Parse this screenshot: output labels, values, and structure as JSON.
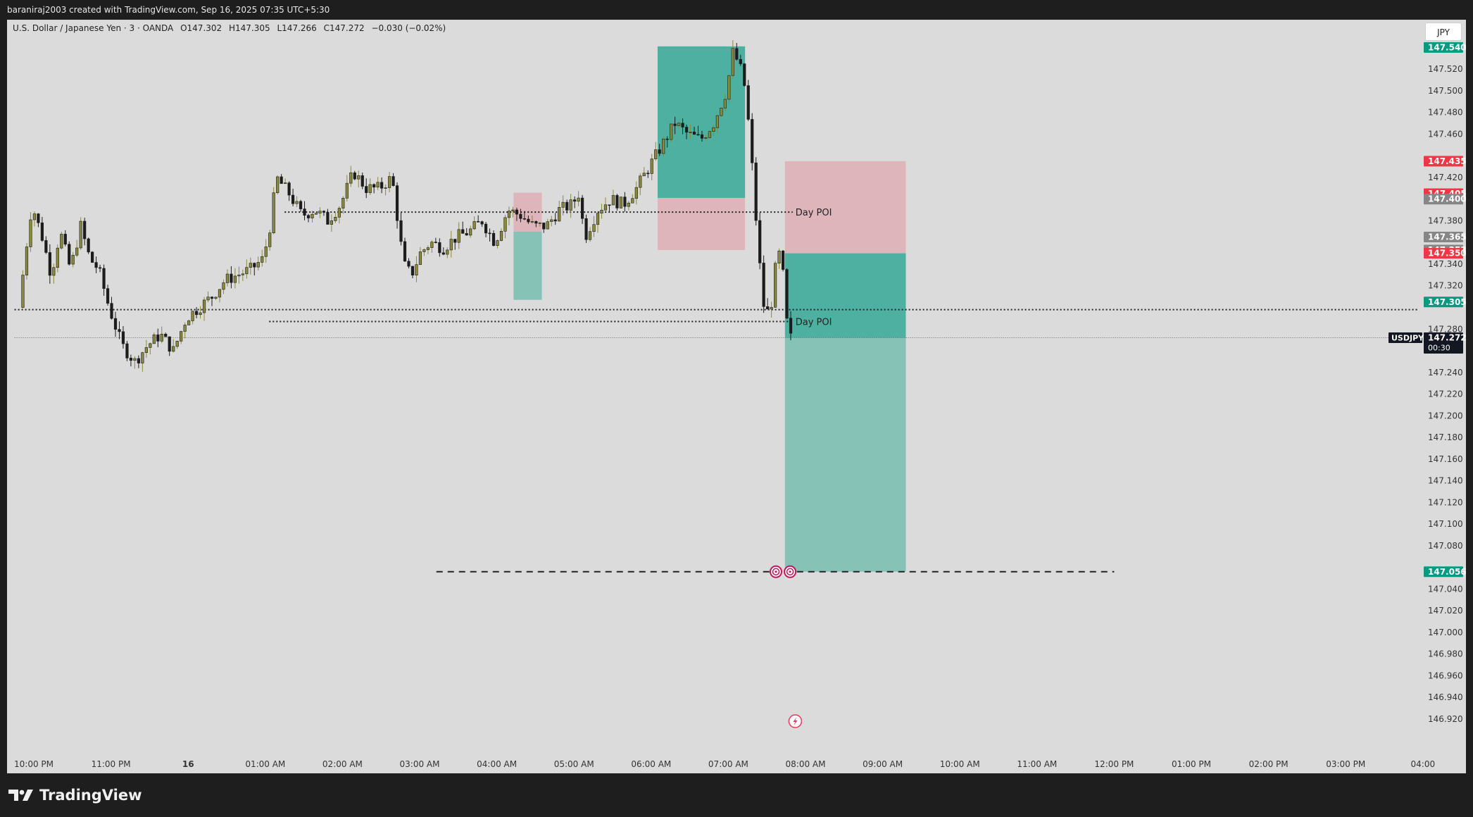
{
  "header": {
    "caption": "baraniraj2003 created with TradingView.com, Sep 16, 2025 07:35 UTC+5:30"
  },
  "legend": {
    "symbol": "U.S. Dollar / Japanese Yen · 3 · OANDA",
    "open": "O147.302",
    "high": "H147.305",
    "low": "L147.266",
    "close": "C147.272",
    "change": "−0.030 (−0.02%)"
  },
  "currency_button": "JPY",
  "footer": {
    "brand": "TradingView"
  },
  "colors": {
    "chart_bg": "#dbdbdb",
    "candle_up": "#8a8a3c",
    "candle_down": "#1c1c1c",
    "teal_zone": "#4eb0a0",
    "teal_zone_light": "#86c2b6",
    "pink_zone": "#dfb5bc",
    "label_green": "#089981",
    "label_red": "#f23645",
    "label_gray": "#868686",
    "label_black": "#131722"
  },
  "chart_data": {
    "type": "candlestick",
    "symbol": "USDJPY",
    "timeframe": "3",
    "ylim": [
      146.905,
      147.55
    ],
    "y_ticks": [
      "147.520",
      "147.500",
      "147.480",
      "147.460",
      "147.420",
      "147.380",
      "147.340",
      "147.320",
      "147.280",
      "147.240",
      "147.220",
      "147.200",
      "147.180",
      "147.160",
      "147.140",
      "147.120",
      "147.100",
      "147.080",
      "147.040",
      "147.020",
      "147.000",
      "146.980",
      "146.960",
      "146.940",
      "146.920"
    ],
    "x_ticks": [
      {
        "label": "10:00 PM",
        "t": 0
      },
      {
        "label": "11:00 PM",
        "t": 60
      },
      {
        "label": "16",
        "t": 120
      },
      {
        "label": "01:00 AM",
        "t": 180
      },
      {
        "label": "02:00 AM",
        "t": 240
      },
      {
        "label": "03:00 AM",
        "t": 300
      },
      {
        "label": "04:00 AM",
        "t": 360
      },
      {
        "label": "05:00 AM",
        "t": 420
      },
      {
        "label": "06:00 AM",
        "t": 480
      },
      {
        "label": "07:00 AM",
        "t": 540
      },
      {
        "label": "08:00 AM",
        "t": 600
      },
      {
        "label": "09:00 AM",
        "t": 660
      },
      {
        "label": "10:00 AM",
        "t": 720
      },
      {
        "label": "11:00 AM",
        "t": 780
      },
      {
        "label": "12:00 PM",
        "t": 840
      },
      {
        "label": "01:00 PM",
        "t": 900
      },
      {
        "label": "02:00 PM",
        "t": 960
      },
      {
        "label": "03:00 PM",
        "t": 1020
      },
      {
        "label": "04:00",
        "t": 1080
      }
    ],
    "price_path": [
      [
        -10,
        147.3
      ],
      [
        -5,
        147.35
      ],
      [
        0,
        147.395
      ],
      [
        8,
        147.365
      ],
      [
        15,
        147.33
      ],
      [
        22,
        147.37
      ],
      [
        30,
        147.335
      ],
      [
        38,
        147.375
      ],
      [
        45,
        147.345
      ],
      [
        52,
        147.335
      ],
      [
        60,
        147.3
      ],
      [
        70,
        147.265
      ],
      [
        80,
        147.25
      ],
      [
        90,
        147.265
      ],
      [
        100,
        147.275
      ],
      [
        110,
        147.26
      ],
      [
        120,
        147.29
      ],
      [
        130,
        147.3
      ],
      [
        140,
        147.31
      ],
      [
        150,
        147.325
      ],
      [
        160,
        147.33
      ],
      [
        170,
        147.335
      ],
      [
        180,
        147.345
      ],
      [
        186,
        147.38
      ],
      [
        190,
        147.42
      ],
      [
        200,
        147.405
      ],
      [
        210,
        147.385
      ],
      [
        220,
        147.39
      ],
      [
        230,
        147.38
      ],
      [
        240,
        147.395
      ],
      [
        250,
        147.425
      ],
      [
        260,
        147.41
      ],
      [
        270,
        147.41
      ],
      [
        280,
        147.42
      ],
      [
        289,
        147.34
      ],
      [
        295,
        147.33
      ],
      [
        302,
        147.35
      ],
      [
        310,
        147.36
      ],
      [
        320,
        147.355
      ],
      [
        330,
        147.365
      ],
      [
        340,
        147.37
      ],
      [
        350,
        147.38
      ],
      [
        360,
        147.36
      ],
      [
        365,
        147.375
      ],
      [
        370,
        147.39
      ],
      [
        380,
        147.385
      ],
      [
        390,
        147.375
      ],
      [
        400,
        147.375
      ],
      [
        410,
        147.39
      ],
      [
        420,
        147.395
      ],
      [
        425,
        147.405
      ],
      [
        430,
        147.365
      ],
      [
        440,
        147.39
      ],
      [
        450,
        147.4
      ],
      [
        460,
        147.395
      ],
      [
        470,
        147.41
      ],
      [
        480,
        147.43
      ],
      [
        490,
        147.45
      ],
      [
        500,
        147.47
      ],
      [
        510,
        147.46
      ],
      [
        520,
        147.455
      ],
      [
        530,
        147.47
      ],
      [
        540,
        147.5
      ],
      [
        545,
        147.535
      ],
      [
        550,
        147.525
      ],
      [
        555,
        147.5
      ],
      [
        560,
        147.43
      ],
      [
        565,
        147.35
      ],
      [
        570,
        147.29
      ],
      [
        575,
        147.305
      ],
      [
        580,
        147.355
      ],
      [
        584,
        147.33
      ],
      [
        588,
        147.272
      ]
    ],
    "zones": [
      {
        "kind": "teal",
        "t1": 485,
        "t2": 553,
        "top": 147.541,
        "bottom": 147.401
      },
      {
        "kind": "pink",
        "t1": 485,
        "t2": 553,
        "top": 147.401,
        "bottom": 147.353
      },
      {
        "kind": "pink",
        "t1": 373,
        "t2": 395,
        "top": 147.406,
        "bottom": 147.37
      },
      {
        "kind": "teal-light",
        "t1": 373,
        "t2": 395,
        "top": 147.37,
        "bottom": 147.307
      },
      {
        "kind": "pink",
        "t1": 584,
        "t2": 678,
        "top": 147.435,
        "bottom": 147.35
      },
      {
        "kind": "teal",
        "t1": 584,
        "t2": 678,
        "top": 147.35,
        "bottom": 147.272
      },
      {
        "kind": "teal-light",
        "t1": 584,
        "t2": 678,
        "top": 147.272,
        "bottom": 147.056
      }
    ],
    "lines": [
      {
        "kind": "dotted",
        "t1": 195,
        "t2": 590,
        "price": 147.388,
        "label": "Day POI"
      },
      {
        "kind": "dotted",
        "t1": -15,
        "t2": 1095,
        "price": 147.298,
        "label": ""
      },
      {
        "kind": "dotted",
        "t1": 183,
        "t2": 590,
        "price": 147.287,
        "label": "Day POI"
      },
      {
        "kind": "thin-dotted",
        "t1": -15,
        "t2": 1095,
        "price": 147.272,
        "label": ""
      },
      {
        "kind": "dashed",
        "t1": 313,
        "t2": 840,
        "price": 147.056,
        "label": ""
      }
    ],
    "axis_labels": [
      {
        "price": 147.54,
        "text": "147.540",
        "color": "green"
      },
      {
        "price": 147.435,
        "text": "147.435",
        "color": "red"
      },
      {
        "price": 147.405,
        "text": "147.405",
        "color": "red"
      },
      {
        "price": 147.4,
        "text": "147.400",
        "color": "gray"
      },
      {
        "price": 147.365,
        "text": "147.365",
        "color": "gray"
      },
      {
        "price": 147.353,
        "text": "147.353",
        "color": "gray"
      },
      {
        "price": 147.35,
        "text": "147.350",
        "color": "red"
      },
      {
        "price": 147.305,
        "text": "147.305",
        "color": "green"
      },
      {
        "price": 147.272,
        "text": "147.272",
        "color": "black",
        "sub": "00:30"
      },
      {
        "price": 147.056,
        "text": "147.056",
        "color": "green"
      }
    ],
    "last_price_tag": "USDJPY",
    "markers": [
      {
        "t": 577,
        "price": 147.056,
        "icon": "target-icon"
      },
      {
        "t": 588,
        "price": 147.056,
        "icon": "target-icon"
      },
      {
        "t": 592,
        "price": 146.918,
        "icon": "lightning-icon"
      }
    ]
  }
}
